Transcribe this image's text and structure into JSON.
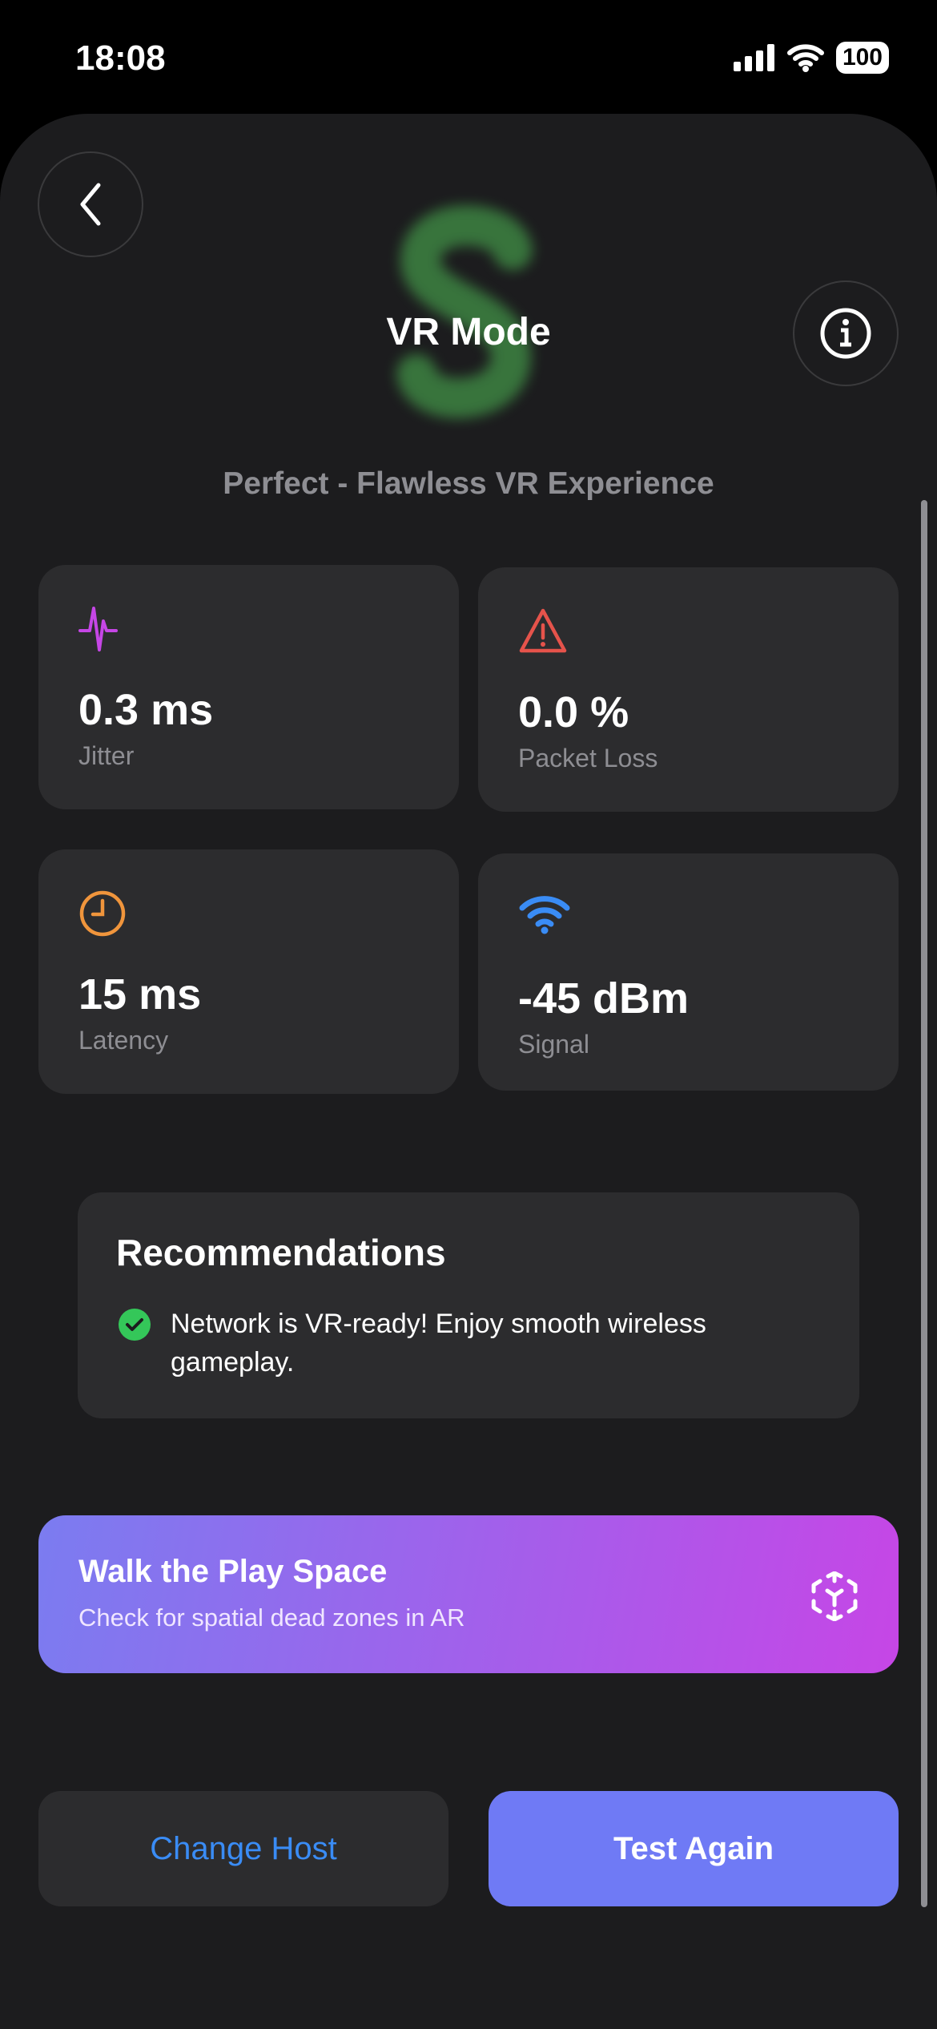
{
  "status_bar": {
    "time": "18:08",
    "battery": "100"
  },
  "header": {
    "title": "VR Mode",
    "subtitle": "Perfect - Flawless VR Experience",
    "logo_letter": "S"
  },
  "metrics": [
    {
      "value": "0.3 ms",
      "label": "Jitter",
      "icon": "waveform-icon",
      "color": "#c646e6"
    },
    {
      "value": "0.0 %",
      "label": "Packet Loss",
      "icon": "warning-triangle-icon",
      "color": "#e5534b"
    },
    {
      "value": "15 ms",
      "label": "Latency",
      "icon": "clock-icon",
      "color": "#f0953c"
    },
    {
      "value": "-45 dBm",
      "label": "Signal",
      "icon": "wifi-icon",
      "color": "#3a8cf5"
    }
  ],
  "recommendations": {
    "title": "Recommendations",
    "items": [
      "Network is VR-ready! Enjoy smooth wireless gameplay."
    ]
  },
  "banner": {
    "title": "Walk the Play Space",
    "subtitle": "Check for spatial dead zones in AR"
  },
  "actions": {
    "change_host": "Change Host",
    "test_again": "Test Again"
  },
  "colors": {
    "background": "#1c1c1e",
    "card": "#2c2c2e",
    "accent": "#6f7af5",
    "link": "#3a8cf5",
    "success": "#34c759"
  }
}
